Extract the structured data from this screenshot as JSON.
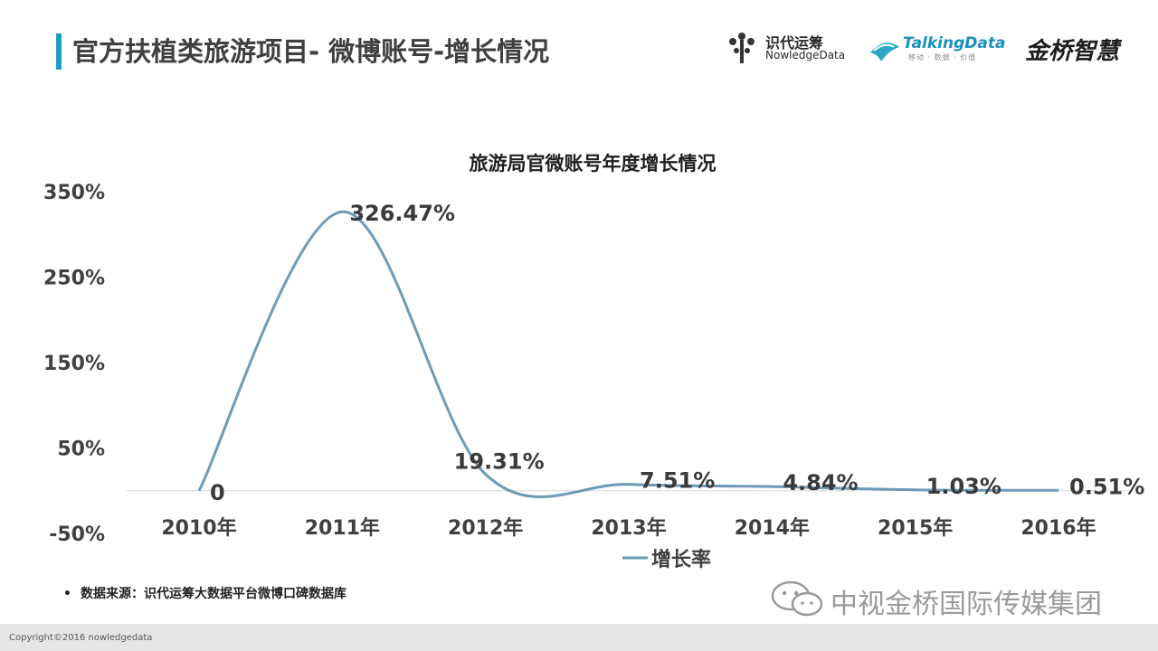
{
  "slide": {
    "title": "官方扶植类旅游项目- 微博账号-增长情况",
    "source_bullet": "•",
    "source": "数据来源：识代运筹大数据平台微博口碑数据库",
    "watermark": "中视金桥国际传媒集团",
    "copyright": "Copyright©2016 nowledgedata",
    "accent_color": "#1a9ec7"
  },
  "logos": {
    "nowledge_cn": "识代运筹",
    "nowledge_en": "NowledgeData",
    "talking_en": "TalkingData",
    "talking_cn": "移动 · 数据 · 价值",
    "jinqiao": "金桥智慧"
  },
  "chart_data": {
    "type": "line",
    "title": "旅游局官微账号年度增长情况",
    "categories": [
      "2010年",
      "2011年",
      "2012年",
      "2013年",
      "2014年",
      "2015年",
      "2016年"
    ],
    "series": [
      {
        "name": "增长率",
        "values": [
          0,
          326.47,
          19.31,
          7.51,
          4.84,
          1.03,
          0.51
        ],
        "labels": [
          "0",
          "326.47%",
          "19.31%",
          "7.51%",
          "4.84%",
          "1.03%",
          "0.51%"
        ],
        "color": "#6f9ab5"
      }
    ],
    "y_ticks": [
      "350%",
      "250%",
      "150%",
      "50%",
      "-50%"
    ],
    "y_tick_values": [
      350,
      250,
      150,
      50,
      -50
    ],
    "ylim": [
      -50,
      350
    ],
    "smooth": true,
    "grid": false,
    "legend_position": "bottom"
  }
}
